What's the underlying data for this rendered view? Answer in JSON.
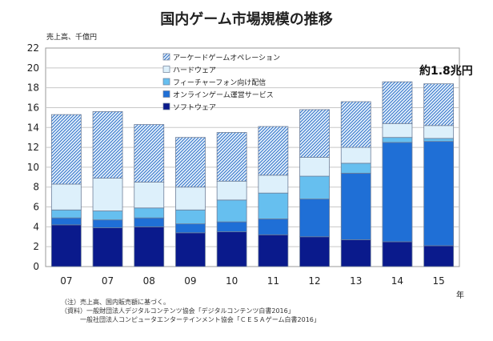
{
  "chart_data": {
    "type": "bar",
    "stacked": true,
    "title": "国内ゲーム市場規模の推移",
    "ylabel": "売上高、千億円",
    "xlabel": "年",
    "ylim": [
      0,
      22
    ],
    "yticks": [
      0,
      2,
      4,
      6,
      8,
      10,
      12,
      14,
      16,
      18,
      20,
      22
    ],
    "grid": true,
    "categories": [
      "07",
      "07",
      "08",
      "09",
      "10",
      "11",
      "12",
      "13",
      "14",
      "15"
    ],
    "series": [
      {
        "name": "ソフトウェア",
        "color": "#0a1a8c",
        "pattern": "solid",
        "values": [
          4.2,
          3.9,
          4.0,
          3.4,
          3.5,
          3.2,
          3.0,
          2.7,
          2.5,
          2.1
        ]
      },
      {
        "name": "オンラインゲーム運営サービス",
        "color": "#1f6fd6",
        "pattern": "solid",
        "values": [
          0.7,
          0.8,
          0.9,
          0.9,
          1.0,
          1.6,
          3.8,
          6.7,
          10.0,
          10.5
        ]
      },
      {
        "name": "フィーチャーフォン向け配信",
        "color": "#66bfef",
        "pattern": "solid",
        "values": [
          0.8,
          0.9,
          1.0,
          1.4,
          2.2,
          2.6,
          2.3,
          1.0,
          0.5,
          0.3
        ]
      },
      {
        "name": "ハードウェア",
        "color": "#ddf0fb",
        "pattern": "solid",
        "values": [
          2.6,
          3.3,
          2.6,
          2.3,
          1.9,
          1.8,
          1.9,
          1.6,
          1.4,
          1.3
        ]
      },
      {
        "name": "アーケードゲームオペレーション",
        "color": "#1f6fd6",
        "pattern": "hatch",
        "values": [
          7.0,
          6.7,
          5.8,
          5.0,
          4.9,
          4.9,
          4.8,
          4.6,
          4.2,
          4.2
        ]
      }
    ],
    "legend_order": [
      "アーケードゲームオペレーション",
      "ハードウェア",
      "フィーチャーフォン向け配信",
      "オンラインゲーム運営サービス",
      "ソフトウェア"
    ],
    "legend_position": "top-center",
    "annotation": "約1.8兆円"
  },
  "notes": [
    "（注）売上高、国内販売額に基づく。",
    "（資料）一般財団法人デジタルコンテンツ協会「デジタルコンテンツ白書2016」",
    "一般社団法人コンピュータエンターテインメント協会「ＣＥＳＡゲーム白書2016」"
  ]
}
